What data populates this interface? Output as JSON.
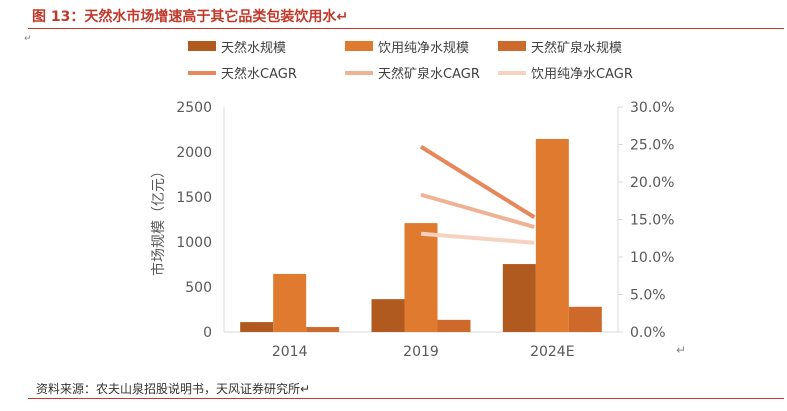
{
  "title": "图 13：天然水市场增速高于其它品类包装饮用水↵",
  "source": "资料来源：农夫山泉招股说明书，天风证券研究所↵",
  "chart_data": {
    "type": "bar",
    "title": "图 13：天然水市场增速高于其它品类包装饮用水",
    "categories": [
      "2014",
      "2019",
      "2024E"
    ],
    "ylabel": "市场规模（亿元）",
    "ylim": [
      0,
      2500
    ],
    "yticks": [
      "0",
      "500",
      "1000",
      "1500",
      "2000",
      "2500"
    ],
    "y2lim": [
      0,
      30
    ],
    "y2ticks": [
      "0.0%",
      "5.0%",
      "10.0%",
      "15.0%",
      "20.0%",
      "25.0%",
      "30.0%"
    ],
    "legend_position": "top",
    "series": [
      {
        "name": "天然水规模",
        "kind": "bar",
        "color": "#B05A20",
        "values": [
          110,
          365,
          755
        ]
      },
      {
        "name": "饮用纯净水规模",
        "kind": "bar",
        "color": "#E07A2F",
        "values": [
          645,
          1210,
          2145
        ]
      },
      {
        "name": "天然矿泉水规模",
        "kind": "bar",
        "color": "#CD6A2B",
        "values": [
          55,
          135,
          280
        ]
      },
      {
        "name": "天然水CAGR",
        "kind": "line",
        "axis": "right",
        "color": "#E8875A",
        "values": [
          null,
          24.7,
          15.3
        ]
      },
      {
        "name": "天然矿泉水CAGR",
        "kind": "line",
        "axis": "right",
        "color": "#F0B294",
        "values": [
          null,
          18.3,
          14.0
        ]
      },
      {
        "name": "饮用纯净水CAGR",
        "kind": "line",
        "axis": "right",
        "color": "#F6D2BF",
        "values": [
          null,
          13.1,
          11.9
        ]
      }
    ]
  }
}
